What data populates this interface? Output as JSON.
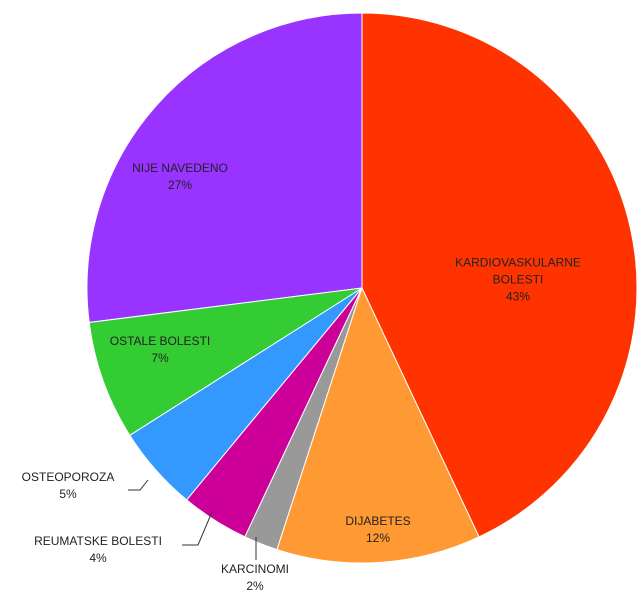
{
  "chart_data": {
    "type": "pie",
    "categories": [
      "KARDIOVASKULARNE BOLESTI",
      "DIJABETES",
      "KARCINOMI",
      "REUMATSKE BOLESTI",
      "OSTEOPOROZA",
      "OSTALE BOLESTI",
      "NIJE NAVEDENO"
    ],
    "values": [
      43,
      12,
      2,
      4,
      5,
      7,
      27
    ],
    "value_labels": [
      "43%",
      "12%",
      "2%",
      "4%",
      "5%",
      "7%",
      "27%"
    ],
    "colors": [
      "#ff3300",
      "#ff9933",
      "#999999",
      "#cc0099",
      "#3399ff",
      "#33cc33",
      "#9933ff"
    ]
  }
}
